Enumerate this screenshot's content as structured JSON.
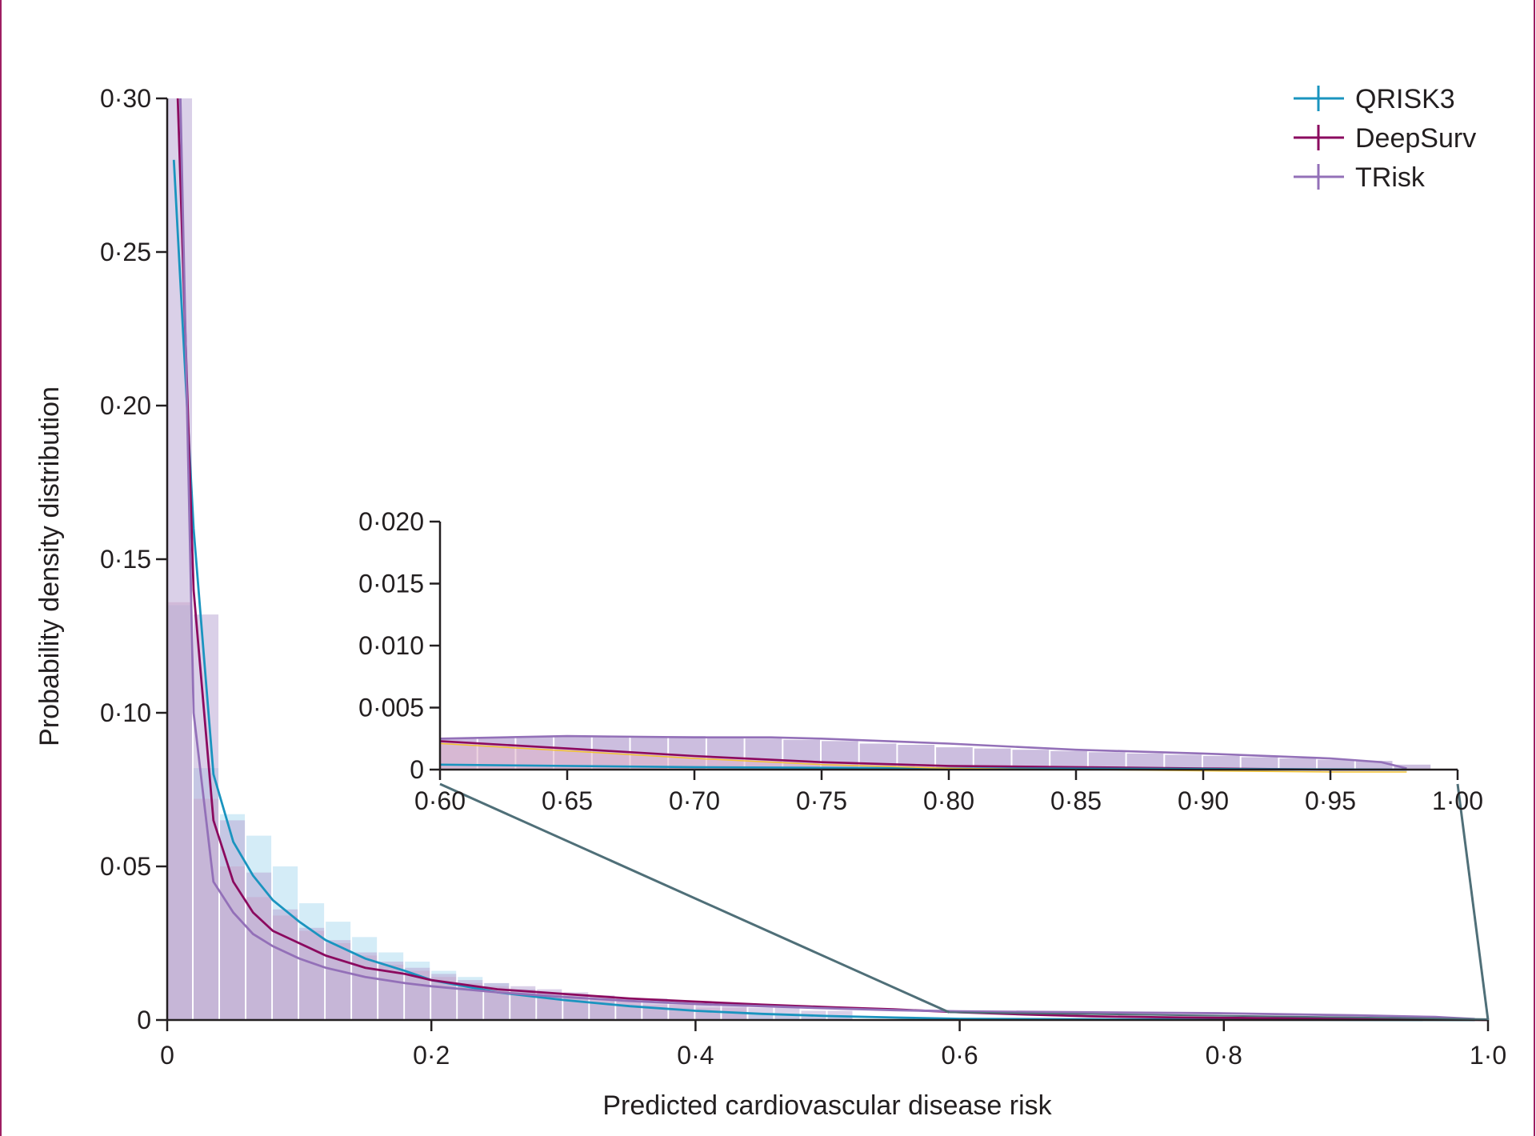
{
  "chart_data": [
    {
      "type": "histogram_density",
      "xlabel": "Predicted cardiovascular disease risk",
      "ylabel": "Probability density distribution",
      "xlim": [
        0,
        1.0
      ],
      "ylim": [
        0,
        0.3
      ],
      "xticks": [
        "0",
        "0·2",
        "0·4",
        "0·6",
        "0·8",
        "1·0"
      ],
      "yticks": [
        "0",
        "0·05",
        "0·10",
        "0·15",
        "0·20",
        "0·25",
        "0·30"
      ],
      "legend_position": "top-right",
      "series": [
        {
          "name": "QRISK3",
          "color": "#1a94bf",
          "fill": "#a9d9f0",
          "curve": [
            [
              0.005,
              0.28
            ],
            [
              0.02,
              0.16
            ],
            [
              0.035,
              0.08
            ],
            [
              0.05,
              0.058
            ],
            [
              0.065,
              0.047
            ],
            [
              0.08,
              0.039
            ],
            [
              0.1,
              0.032
            ],
            [
              0.12,
              0.026
            ],
            [
              0.15,
              0.02
            ],
            [
              0.18,
              0.016
            ],
            [
              0.2,
              0.013
            ],
            [
              0.25,
              0.009
            ],
            [
              0.3,
              0.0065
            ],
            [
              0.35,
              0.0045
            ],
            [
              0.4,
              0.003
            ],
            [
              0.45,
              0.002
            ],
            [
              0.5,
              0.0013
            ],
            [
              0.55,
              0.0008
            ],
            [
              0.6,
              0.0004
            ],
            [
              0.7,
              0.0002
            ],
            [
              0.8,
              0.0001
            ],
            [
              0.9,
              5e-05
            ],
            [
              0.99,
              0
            ]
          ],
          "bars": [
            0.135,
            0.082,
            0.067,
            0.06,
            0.05,
            0.038,
            0.032,
            0.027,
            0.022,
            0.019,
            0.016,
            0.014,
            0.012,
            0.01,
            0.008,
            0.007,
            0.006,
            0.005,
            0.004,
            0.004,
            0.003,
            0.003,
            0.002,
            0.002,
            0.001,
            0.001
          ]
        },
        {
          "name": "DeepSurv",
          "color": "#8b0a5f",
          "fill": "#d9a8c4",
          "curve": [
            [
              0.008,
              0.3
            ],
            [
              0.02,
              0.14
            ],
            [
              0.035,
              0.065
            ],
            [
              0.05,
              0.045
            ],
            [
              0.065,
              0.035
            ],
            [
              0.08,
              0.029
            ],
            [
              0.1,
              0.025
            ],
            [
              0.12,
              0.021
            ],
            [
              0.15,
              0.017
            ],
            [
              0.18,
              0.015
            ],
            [
              0.2,
              0.013
            ],
            [
              0.25,
              0.01
            ],
            [
              0.3,
              0.0085
            ],
            [
              0.35,
              0.007
            ],
            [
              0.4,
              0.006
            ],
            [
              0.45,
              0.005
            ],
            [
              0.5,
              0.0042
            ],
            [
              0.55,
              0.0035
            ],
            [
              0.6,
              0.0025
            ],
            [
              0.65,
              0.0018
            ],
            [
              0.7,
              0.0012
            ],
            [
              0.75,
              0.0009
            ],
            [
              0.8,
              0.0007
            ],
            [
              0.9,
              0.0004
            ],
            [
              0.97,
              0.0002
            ],
            [
              1.0,
              0
            ]
          ],
          "bars": [
            0.136,
            0.072,
            0.05,
            0.04,
            0.034,
            0.029,
            0.025,
            0.021,
            0.018,
            0.016,
            0.014,
            0.012,
            0.011,
            0.01,
            0.009,
            0.008,
            0.007,
            0.006,
            0.005,
            0.005,
            0.004,
            0.004
          ]
        },
        {
          "name": "TRisk",
          "color": "#9370b8",
          "fill": "#b6a2d2",
          "curve": [
            [
              0.01,
              0.3
            ],
            [
              0.02,
              0.1
            ],
            [
              0.035,
              0.045
            ],
            [
              0.05,
              0.035
            ],
            [
              0.065,
              0.028
            ],
            [
              0.08,
              0.024
            ],
            [
              0.1,
              0.02
            ],
            [
              0.12,
              0.017
            ],
            [
              0.15,
              0.014
            ],
            [
              0.18,
              0.012
            ],
            [
              0.2,
              0.011
            ],
            [
              0.25,
              0.009
            ],
            [
              0.3,
              0.0075
            ],
            [
              0.35,
              0.0062
            ],
            [
              0.4,
              0.0052
            ],
            [
              0.45,
              0.0045
            ],
            [
              0.5,
              0.0038
            ],
            [
              0.55,
              0.0032
            ],
            [
              0.6,
              0.0028
            ],
            [
              0.7,
              0.0025
            ],
            [
              0.8,
              0.0022
            ],
            [
              0.9,
              0.0015
            ],
            [
              0.96,
              0.001
            ],
            [
              0.99,
              0.0003
            ]
          ],
          "bars": [
            0.3,
            0.132,
            0.065,
            0.048,
            0.036,
            0.03,
            0.026,
            0.022,
            0.019,
            0.017,
            0.015,
            0.013,
            0.012,
            0.011,
            0.01,
            0.009,
            0.008,
            0.007,
            0.007,
            0.006,
            0.005,
            0.005,
            0.004,
            0.004,
            0.003,
            0.003
          ]
        }
      ]
    },
    {
      "type": "histogram_density",
      "role": "inset",
      "xlim": [
        0.6,
        1.0
      ],
      "ylim": [
        0,
        0.02
      ],
      "xticks": [
        "0·60",
        "0·65",
        "0·70",
        "0·75",
        "0·80",
        "0·85",
        "0·90",
        "0·95",
        "1·00"
      ],
      "yticks": [
        "0",
        "0·005",
        "0·010",
        "0·015",
        "0·020"
      ],
      "series": [
        {
          "name": "QRISK3",
          "curve": [
            [
              0.6,
              0.0004
            ],
            [
              0.65,
              0.0003
            ],
            [
              0.7,
              0.0002
            ],
            [
              0.8,
              0.0001
            ],
            [
              0.9,
              5e-05
            ],
            [
              0.98,
              0.0
            ]
          ]
        },
        {
          "name": "DeepSurv",
          "curve": [
            [
              0.6,
              0.0023
            ],
            [
              0.65,
              0.0017
            ],
            [
              0.7,
              0.0011
            ],
            [
              0.75,
              0.0006
            ],
            [
              0.8,
              0.0003
            ],
            [
              0.85,
              0.0002
            ],
            [
              0.9,
              0.0001
            ],
            [
              0.95,
              0.0
            ],
            [
              0.98,
              0.0
            ]
          ]
        },
        {
          "name": "TRisk",
          "curve": [
            [
              0.6,
              0.0025
            ],
            [
              0.65,
              0.0027
            ],
            [
              0.7,
              0.0026
            ],
            [
              0.73,
              0.0026
            ],
            [
              0.75,
              0.0025
            ],
            [
              0.8,
              0.0021
            ],
            [
              0.85,
              0.0016
            ],
            [
              0.9,
              0.0013
            ],
            [
              0.95,
              0.0009
            ],
            [
              0.97,
              0.0006
            ],
            [
              0.98,
              0.0001
            ]
          ],
          "bars": [
            0.0025,
            0.0026,
            0.0027,
            0.0027,
            0.0026,
            0.0026,
            0.0027,
            0.0026,
            0.0025,
            0.0024,
            0.0023,
            0.0021,
            0.002,
            0.0018,
            0.0017,
            0.0016,
            0.0015,
            0.0014,
            0.0013,
            0.0012,
            0.0011,
            0.001,
            0.0009,
            0.0008,
            0.0007,
            0.0004
          ]
        }
      ]
    }
  ]
}
